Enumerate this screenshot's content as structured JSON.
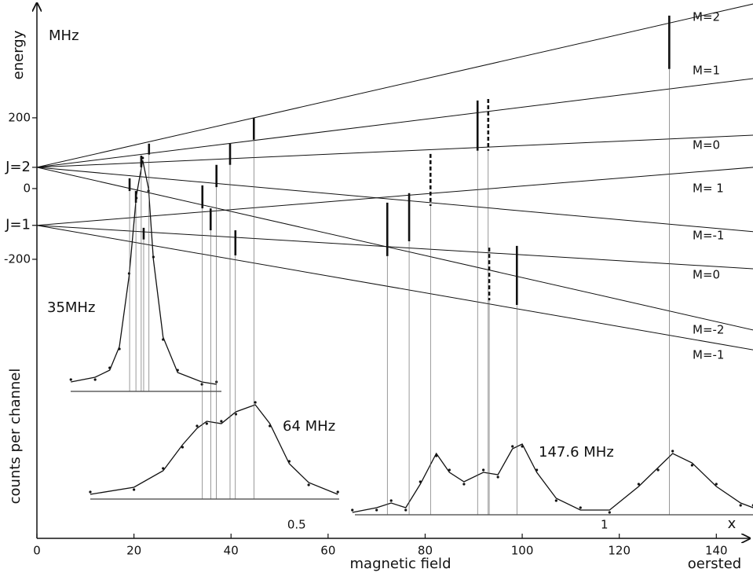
{
  "chart_data": {
    "type": "line",
    "ylabel_unit": "MHz",
    "ylabel": "energy",
    "y2label": "counts per channel",
    "xlabel": "magnetic field",
    "xunit": "oersted",
    "xlim": [
      0,
      146.1
    ],
    "xticks": [
      0,
      20,
      40,
      60,
      80,
      100,
      120,
      140
    ],
    "x2lim": [
      0.078,
      1.23
    ],
    "x2ticks": [
      0.5,
      1
    ],
    "x2label": "x",
    "ylim": [
      -989,
      522
    ],
    "yticks": [
      200,
      0,
      -200
    ],
    "levels": [
      {
        "label": "J=2",
        "value": 60
      },
      {
        "label": "J=1",
        "value": -104
      }
    ],
    "color": "#111111",
    "series": [
      {
        "name": "M=2",
        "x": [
          0,
          147.6
        ],
        "values": [
          60,
          522
        ]
      },
      {
        "name": "M=1",
        "x": [
          0,
          147.6
        ],
        "values": [
          60,
          311
        ]
      },
      {
        "name": "M=0",
        "x": [
          0,
          147.6
        ],
        "values": [
          60,
          151
        ]
      },
      {
        "name": "M= 1",
        "x": [
          0,
          147.6
        ],
        "values": [
          -104,
          60
        ]
      },
      {
        "name": "M=-1",
        "x": [
          0,
          147.6
        ],
        "values": [
          60,
          -122
        ]
      },
      {
        "name": "M=0",
        "x": [
          0,
          147.6
        ],
        "values": [
          -104,
          -227
        ]
      },
      {
        "name": "M=-2",
        "x": [
          0,
          147.6
        ],
        "values": [
          60,
          -400
        ]
      },
      {
        "name": "M=-1",
        "x": [
          0,
          147.6
        ],
        "values": [
          -104,
          -456
        ]
      }
    ],
    "spectra": [
      {
        "name": "35MHz",
        "x": [
          7,
          12,
          15,
          17,
          19,
          20.5,
          21.8,
          23,
          24,
          26,
          29,
          34,
          37
        ],
        "values": [
          4,
          6,
          9,
          19,
          49,
          83,
          98,
          86,
          56,
          23,
          8,
          4,
          3
        ],
        "transitions": [
          {
            "x": 23.1,
            "values": [
              127,
              96
            ],
            "dashed": false
          },
          {
            "x": 21.5,
            "values": [
              93,
              60
            ],
            "dashed": false
          },
          {
            "x": 19.1,
            "values": [
              29,
              -7
            ],
            "dashed": false
          },
          {
            "x": 20.4,
            "values": [
              -7,
              -40
            ],
            "dashed": false
          },
          {
            "x": 22,
            "values": [
              -111,
              -144
            ],
            "dashed": false
          }
        ]
      },
      {
        "name": "64 MHz",
        "x": [
          11,
          20,
          26,
          30,
          33,
          35,
          38,
          41,
          45,
          48,
          52,
          56,
          62
        ],
        "values": [
          2,
          5,
          12,
          23,
          30,
          33,
          32,
          37,
          40,
          32,
          15,
          7,
          2
        ],
        "transitions": [
          {
            "x": 44.7,
            "values": [
              200,
              138
            ],
            "dashed": false
          },
          {
            "x": 39.8,
            "values": [
              127,
              67
            ],
            "dashed": false
          },
          {
            "x": 37,
            "values": [
              67,
              4
            ],
            "dashed": false
          },
          {
            "x": 34.1,
            "values": [
              9,
              -56
            ],
            "dashed": false
          },
          {
            "x": 35.8,
            "values": [
              -56,
              -118
            ],
            "dashed": false
          },
          {
            "x": 40.9,
            "values": [
              -118,
              -189
            ],
            "dashed": false
          }
        ]
      },
      {
        "name": "147.6 MHz",
        "x": [
          65,
          70,
          73,
          76,
          79,
          82.3,
          85,
          88,
          92,
          95,
          98,
          100,
          103,
          107,
          112,
          118,
          124,
          128,
          131,
          135,
          140,
          145,
          147.6
        ],
        "values": [
          1,
          3,
          5,
          3,
          13,
          26,
          18,
          14,
          18,
          17,
          28,
          30,
          18,
          7,
          2,
          2,
          12,
          20,
          26,
          22,
          12,
          5,
          3
        ],
        "transitions": [
          {
            "x": 130.3,
            "values": [
              489,
              338
            ],
            "dashed": false
          },
          {
            "x": 98.9,
            "values": [
              -162,
              -329
            ],
            "dashed": false
          },
          {
            "x": 90.8,
            "values": [
              249,
              107
            ],
            "dashed": false
          },
          {
            "x": 93,
            "values": [
              253,
              107
            ],
            "dashed": true
          },
          {
            "x": 81.1,
            "values": [
              98,
              -49
            ],
            "dashed": true
          },
          {
            "x": 76.7,
            "values": [
              -13,
              -149
            ],
            "dashed": false
          },
          {
            "x": 72.2,
            "values": [
              -40,
              -191
            ],
            "dashed": false
          },
          {
            "x": 93.2,
            "values": [
              -167,
              -316
            ],
            "dashed": true
          }
        ]
      }
    ]
  }
}
